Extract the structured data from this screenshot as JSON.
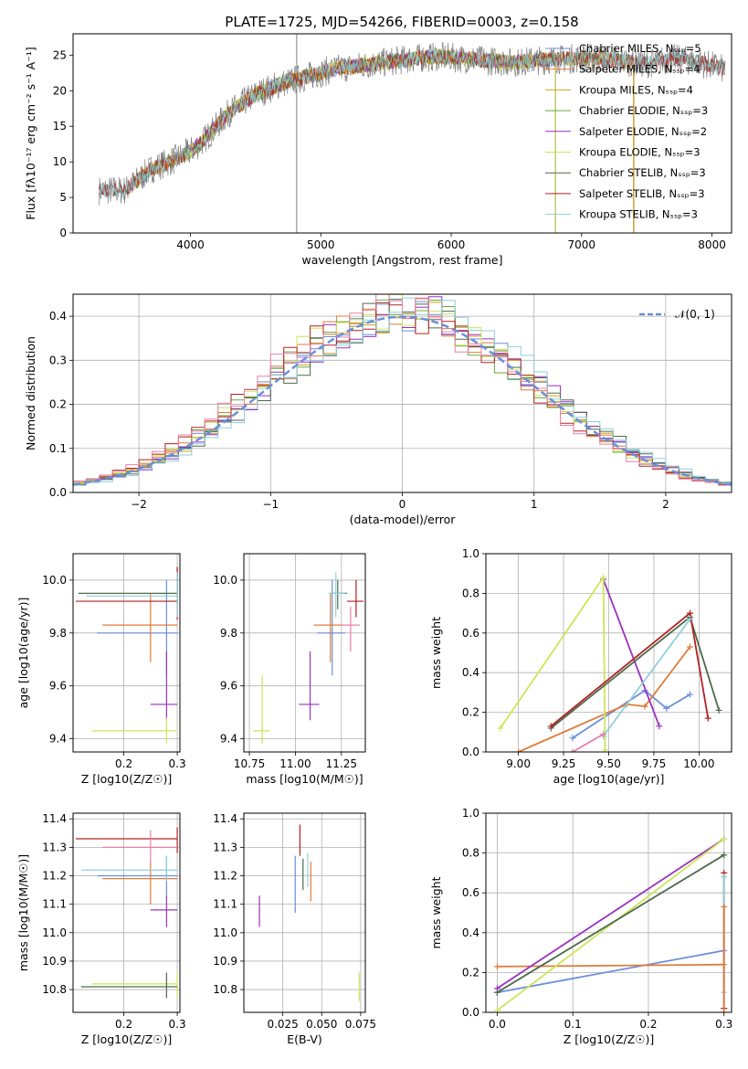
{
  "title": "PLATE=1725, MJD=54266, FIBERID=0003, z=0.158",
  "series_colors": [
    "#6a8fdb",
    "#e07b39",
    "#d4a017",
    "#6aaa3a",
    "#9b30c0",
    "#cce657",
    "#4d6a4d",
    "#b22222",
    "#8ecfd8",
    "#e67fa8"
  ],
  "chart_data": [
    {
      "id": "spectrum",
      "type": "line",
      "title": "PLATE=1725, MJD=54266, FIBERID=0003, z=0.158",
      "xlabel": "wavelength [Angstrom, rest frame]",
      "ylabel": "Flux [fλ10⁻¹⁷ erg cm⁻² s⁻¹ A⁻¹]",
      "xlim": [
        3100,
        8150
      ],
      "ylim": [
        0,
        28
      ],
      "xticks": [
        4000,
        5000,
        6000,
        7000,
        8000
      ],
      "yticks": [
        0,
        5,
        10,
        15,
        20,
        25
      ],
      "grid": false,
      "legend": "right",
      "data_envelope": {
        "x": [
          3300,
          3500,
          3700,
          3900,
          4000,
          4100,
          4200,
          4300,
          4500,
          4700,
          4900,
          5100,
          5300,
          5500,
          5700,
          5900,
          6100,
          6300,
          6500,
          6700,
          6900,
          7100,
          7300,
          7500,
          7700,
          7900,
          8100
        ],
        "y": [
          6.0,
          6.0,
          9.0,
          10.5,
          11.5,
          13.0,
          15.0,
          17.0,
          19.5,
          21.0,
          22.0,
          23.0,
          23.5,
          24.0,
          24.5,
          24.8,
          24.5,
          24.2,
          24.0,
          24.3,
          24.5,
          24.6,
          24.2,
          23.8,
          24.5,
          24.0,
          23.0
        ]
      },
      "series": [
        {
          "name": "Chabrier MILES, N_SSP=5"
        },
        {
          "name": "Salpeter MILES, N_SSP=4"
        },
        {
          "name": "Kroupa MILES, N_SSP=4"
        },
        {
          "name": "Chabrier ELODIE, N_SSP=3"
        },
        {
          "name": "Salpeter ELODIE, N_SSP=2"
        },
        {
          "name": "Kroupa ELODIE, N_SSP=3"
        },
        {
          "name": "Chabrier STELIB, N_SSP=3"
        },
        {
          "name": "Salpeter STELIB, N_SSP=3"
        },
        {
          "name": "Kroupa STELIB, N_SSP=3"
        }
      ]
    },
    {
      "id": "residuals",
      "type": "line",
      "xlabel": "(data-model)/error",
      "ylabel": "Normed distribution",
      "xlim": [
        -2.5,
        2.5
      ],
      "ylim": [
        0,
        0.45
      ],
      "xticks": [
        -2,
        -1,
        0,
        1,
        2
      ],
      "yticks": [
        0.0,
        0.1,
        0.2,
        0.3,
        0.4
      ],
      "grid": true,
      "legend": "top-right",
      "reference_label": "𝒩(0, 1)",
      "bin_width": 0.1
    },
    {
      "id": "age_vs_Z",
      "type": "scatter",
      "xlabel": "Z [log10(Z/Z☉)]",
      "ylabel": "age  [log10(age/yr)]",
      "xlim": [
        0.105,
        0.305
      ],
      "ylim": [
        9.35,
        10.1
      ],
      "xticks": [
        0.2,
        0.3
      ],
      "yticks": [
        9.4,
        9.6,
        9.8,
        10.0
      ],
      "grid": true,
      "points": [
        {
          "x": 0.28,
          "y": 9.8,
          "xlo": 0.15,
          "xhi": 0.3,
          "ylo": 9.64,
          "yhi": 10.0,
          "c": 0
        },
        {
          "x": 0.25,
          "y": 9.83,
          "xlo": 0.16,
          "xhi": 0.3,
          "ylo": 9.69,
          "yhi": 9.95,
          "c": 1
        },
        {
          "x": 0.28,
          "y": 9.53,
          "xlo": 0.25,
          "xhi": 0.3,
          "ylo": 9.47,
          "yhi": 9.73,
          "c": 4
        },
        {
          "x": 0.28,
          "y": 9.43,
          "xlo": 0.14,
          "xhi": 0.3,
          "ylo": 9.38,
          "yhi": 9.48,
          "c": 5
        },
        {
          "x": 0.3,
          "y": 9.95,
          "xlo": 0.115,
          "xhi": 0.3,
          "ylo": 9.9,
          "yhi": 10.05,
          "c": 6
        },
        {
          "x": 0.3,
          "y": 9.92,
          "xlo": 0.11,
          "xhi": 0.3,
          "ylo": 9.85,
          "yhi": 10.05,
          "c": 7
        },
        {
          "x": 0.3,
          "y": 9.94,
          "xlo": 0.13,
          "xhi": 0.3,
          "ylo": 9.86,
          "yhi": 10.03,
          "c": 8
        }
      ]
    },
    {
      "id": "age_vs_mass",
      "type": "scatter",
      "xlabel": "mass [log10(M/M☉)]",
      "ylabel": "",
      "xlim": [
        10.72,
        11.38
      ],
      "ylim": [
        9.35,
        10.1
      ],
      "xticks": [
        10.75,
        11.0,
        11.25
      ],
      "yticks": [
        9.4,
        9.6,
        9.8,
        10.0
      ],
      "grid": true,
      "points": [
        {
          "x": 11.2,
          "y": 9.8,
          "xlo": 11.12,
          "xhi": 11.27,
          "ylo": 9.64,
          "yhi": 10.0,
          "c": 0
        },
        {
          "x": 11.19,
          "y": 9.83,
          "xlo": 11.1,
          "xhi": 11.25,
          "ylo": 9.69,
          "yhi": 9.95,
          "c": 1
        },
        {
          "x": 11.08,
          "y": 9.53,
          "xlo": 11.02,
          "xhi": 11.13,
          "ylo": 9.47,
          "yhi": 9.73,
          "c": 4
        },
        {
          "x": 10.82,
          "y": 9.43,
          "xlo": 10.77,
          "xhi": 10.86,
          "ylo": 9.38,
          "yhi": 9.64,
          "c": 5
        },
        {
          "x": 11.23,
          "y": 9.95,
          "xlo": 11.19,
          "xhi": 11.28,
          "ylo": 9.89,
          "yhi": 10.0,
          "c": 6
        },
        {
          "x": 11.33,
          "y": 9.92,
          "xlo": 11.28,
          "xhi": 11.37,
          "ylo": 9.86,
          "yhi": 10.0,
          "c": 7
        },
        {
          "x": 11.22,
          "y": 9.95,
          "xlo": 11.18,
          "xhi": 11.27,
          "ylo": 9.86,
          "yhi": 10.03,
          "c": 8
        },
        {
          "x": 11.3,
          "y": 9.83,
          "xlo": 11.25,
          "xhi": 11.35,
          "ylo": 9.73,
          "yhi": 9.9,
          "c": 9
        }
      ]
    },
    {
      "id": "weight_vs_age",
      "type": "line",
      "xlabel": "age  [log10(age/yr)]",
      "ylabel": "mass weight",
      "xlim": [
        8.82,
        10.18
      ],
      "ylim": [
        0,
        1.0
      ],
      "xticks": [
        9.0,
        9.25,
        9.5,
        9.75,
        10.0
      ],
      "yticks": [
        0.0,
        0.2,
        0.4,
        0.6,
        0.8,
        1.0
      ],
      "grid": true,
      "series": [
        {
          "c": 0,
          "x": [
            9.3,
            9.7,
            9.82,
            9.95
          ],
          "y": [
            0.07,
            0.31,
            0.22,
            0.29
          ]
        },
        {
          "c": 1,
          "x": [
            9.0,
            9.6,
            9.7,
            9.95
          ],
          "y": [
            0.0,
            0.24,
            0.23,
            0.53
          ]
        },
        {
          "c": 4,
          "x": [
            9.47,
            9.78
          ],
          "y": [
            0.87,
            0.13
          ]
        },
        {
          "c": 5,
          "x": [
            8.9,
            9.47,
            9.48
          ],
          "y": [
            0.12,
            0.88,
            0.01
          ]
        },
        {
          "c": 6,
          "x": [
            9.18,
            9.95,
            10.11
          ],
          "y": [
            0.12,
            0.68,
            0.21
          ]
        },
        {
          "c": 7,
          "x": [
            9.18,
            9.95,
            10.05
          ],
          "y": [
            0.13,
            0.7,
            0.17
          ]
        },
        {
          "c": 8,
          "x": [
            9.47,
            9.95
          ],
          "y": [
            0.08,
            0.67
          ]
        },
        {
          "c": 9,
          "x": [
            9.3,
            9.47
          ],
          "y": [
            0.0,
            0.09
          ]
        }
      ]
    },
    {
      "id": "mass_vs_Z",
      "type": "scatter",
      "xlabel": "Z [log10(Z/Z☉)]",
      "ylabel": "mass [log10(M/M☉)]",
      "xlim": [
        0.105,
        0.305
      ],
      "ylim": [
        10.72,
        11.42
      ],
      "xticks": [
        0.2,
        0.3
      ],
      "yticks": [
        10.8,
        10.9,
        11.0,
        11.1,
        11.2,
        11.3,
        11.4
      ],
      "grid": true,
      "points": [
        {
          "x": 0.28,
          "y": 11.2,
          "xlo": 0.15,
          "xhi": 0.3,
          "ylo": 11.12,
          "yhi": 11.27,
          "c": 0
        },
        {
          "x": 0.25,
          "y": 11.19,
          "xlo": 0.16,
          "xhi": 0.3,
          "ylo": 11.1,
          "yhi": 11.25,
          "c": 1
        },
        {
          "x": 0.28,
          "y": 11.08,
          "xlo": 0.25,
          "xhi": 0.3,
          "ylo": 11.02,
          "yhi": 11.13,
          "c": 4
        },
        {
          "x": 0.3,
          "y": 10.82,
          "xlo": 0.14,
          "xhi": 0.3,
          "ylo": 10.77,
          "yhi": 10.86,
          "c": 5
        },
        {
          "x": 0.28,
          "y": 10.81,
          "xlo": 0.12,
          "xhi": 0.3,
          "ylo": 10.77,
          "yhi": 10.86,
          "c": 6
        },
        {
          "x": 0.3,
          "y": 11.33,
          "xlo": 0.11,
          "xhi": 0.3,
          "ylo": 11.28,
          "yhi": 11.37,
          "c": 7
        },
        {
          "x": 0.28,
          "y": 11.22,
          "xlo": 0.12,
          "xhi": 0.3,
          "ylo": 11.18,
          "yhi": 11.27,
          "c": 8
        },
        {
          "x": 0.25,
          "y": 11.3,
          "xlo": 0.16,
          "xhi": 0.3,
          "ylo": 11.25,
          "yhi": 11.36,
          "c": 9
        }
      ]
    },
    {
      "id": "mass_vs_EBV",
      "type": "scatter",
      "xlabel": "E(B-V)",
      "ylabel": "",
      "xlim": [
        0.0,
        0.078
      ],
      "ylim": [
        10.72,
        11.42
      ],
      "xticks": [
        0.025,
        0.05,
        0.075
      ],
      "yticks": [
        10.8,
        10.9,
        11.0,
        11.1,
        11.2,
        11.3,
        11.4
      ],
      "grid": true,
      "points": [
        {
          "x": 0.033,
          "y": 11.17,
          "ylo": 11.07,
          "yhi": 11.27,
          "c": 0
        },
        {
          "x": 0.043,
          "y": 11.18,
          "ylo": 11.11,
          "yhi": 11.25,
          "c": 1
        },
        {
          "x": 0.01,
          "y": 11.07,
          "ylo": 11.02,
          "yhi": 11.13,
          "c": 4
        },
        {
          "x": 0.074,
          "y": 10.81,
          "ylo": 10.76,
          "yhi": 10.86,
          "c": 5
        },
        {
          "x": 0.038,
          "y": 11.2,
          "ylo": 11.15,
          "yhi": 11.26,
          "c": 6
        },
        {
          "x": 0.036,
          "y": 11.33,
          "ylo": 11.27,
          "yhi": 11.38,
          "c": 7
        },
        {
          "x": 0.041,
          "y": 11.22,
          "ylo": 11.16,
          "yhi": 11.28,
          "c": 8
        }
      ]
    },
    {
      "id": "weight_vs_Z",
      "type": "line",
      "xlabel": "Z [log10(Z/Z☉)]",
      "ylabel": "mass weight",
      "xlim": [
        -0.015,
        0.31
      ],
      "ylim": [
        0,
        1.0
      ],
      "xticks": [
        0.0,
        0.1,
        0.2,
        0.3
      ],
      "yticks": [
        0.0,
        0.2,
        0.4,
        0.6,
        0.8,
        1.0
      ],
      "grid": true,
      "series": [
        {
          "c": 0,
          "x": [
            0.0,
            0.3
          ],
          "y": [
            0.1,
            0.31
          ]
        },
        {
          "c": 1,
          "x": [
            0.0,
            0.3
          ],
          "y": [
            0.23,
            0.24
          ]
        },
        {
          "c": 4,
          "x": [
            0.0,
            0.3
          ],
          "y": [
            0.12,
            0.87
          ]
        },
        {
          "c": 5,
          "x": [
            0.0,
            0.3
          ],
          "y": [
            0.01,
            0.87
          ]
        },
        {
          "c": 6,
          "x": [
            0.0,
            0.3
          ],
          "y": [
            0.1,
            0.79
          ]
        },
        {
          "c": 7,
          "x": [
            0.3,
            0.3
          ],
          "y": [
            0.02,
            0.7
          ]
        },
        {
          "c": 8,
          "x": [
            0.3,
            0.3
          ],
          "y": [
            0.1,
            0.68
          ]
        },
        {
          "c": 1,
          "x": [
            0.3,
            0.3
          ],
          "y": [
            0.0,
            0.53
          ]
        }
      ]
    }
  ]
}
